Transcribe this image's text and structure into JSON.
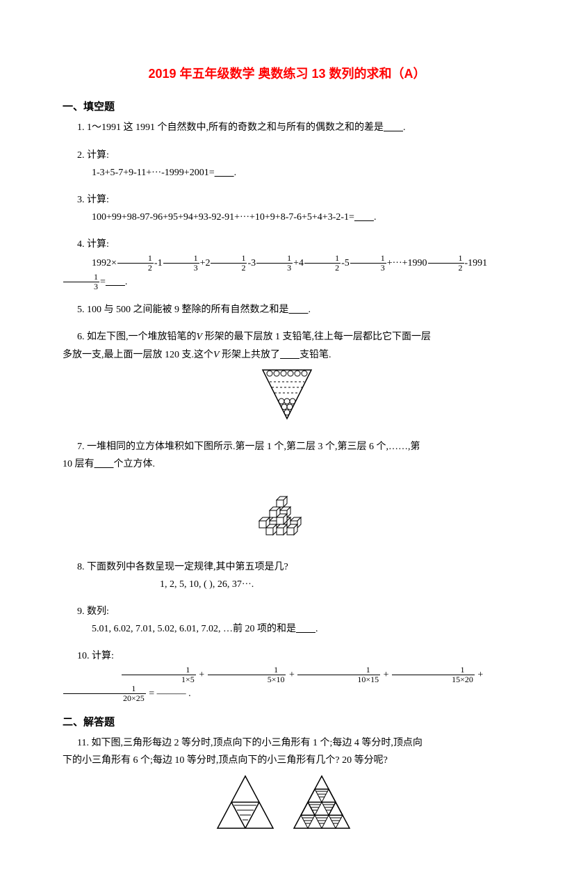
{
  "title": "2019 年五年级数学 奥数练习 13 数列的求和（A）",
  "section1_head": "一、填空题",
  "q1": {
    "num": "1.",
    "text_a": "1～1991 这 1991 个自然数中,所有的奇数之和与所有的偶数之和的差是",
    "text_b": "."
  },
  "q2": {
    "num": "2.",
    "label": "计算:",
    "expr": "1-3+5-7+9-11+···-1999+2001=",
    "suffix": "."
  },
  "q3": {
    "num": "3.",
    "label": "计算:",
    "expr": "100+99+98-97-96+95+94+93-92-91+···+10+9+8-7-6+5+4+3-2-1=",
    "suffix": "."
  },
  "q4": {
    "num": "4.",
    "label": "计算:",
    "prefix": "1992×",
    "terms": [
      {
        "coef": "",
        "num": "1",
        "den": "2",
        "after": "-1"
      },
      {
        "coef": "",
        "num": "1",
        "den": "3",
        "after": "+2"
      },
      {
        "coef": "",
        "num": "1",
        "den": "2",
        "after": "-3"
      },
      {
        "coef": "",
        "num": "1",
        "den": "3",
        "after": "+4"
      },
      {
        "coef": "",
        "num": "1",
        "den": "2",
        "after": "-5"
      },
      {
        "coef": "",
        "num": "1",
        "den": "3",
        "after": "+···+1990"
      },
      {
        "coef": "",
        "num": "1",
        "den": "2",
        "after": "-1991"
      },
      {
        "coef": "",
        "num": "1",
        "den": "3",
        "after": "="
      }
    ],
    "suffix": "."
  },
  "q5": {
    "num": "5.",
    "text_a": "100 与 500 之间能被 9 整除的所有自然数之和是",
    "text_b": "."
  },
  "q6": {
    "num": "6.",
    "line1_a": "如左下图,一个堆放铅笔的",
    "line1_b": " 形架的最下层放 1 支铅笔,往上每一层都比它下面一层",
    "line2_a": "多放一支,最上面一层放 120 支.这个",
    "line2_b": " 形架上共放了",
    "line2_c": "支铅笔."
  },
  "q7": {
    "num": "7.",
    "text_a": "一堆相同的立方体堆积如下图所示.第一层 1 个,第二层 3 个,第三层 6 个,……,第",
    "text_b": "10 层有",
    "text_c": "个立方体."
  },
  "q8": {
    "num": "8.",
    "text": "下面数列中各数呈现一定规律,其中第五项是几?",
    "seq": "1, 2, 5, 10, (  ), 26, 37···."
  },
  "q9": {
    "num": "9.",
    "label": "数列:",
    "seq_a": "5.01,  6.02,  7.01,  5.02,  6.01,  7.02,  …前 20 项的和是",
    "seq_b": "."
  },
  "q10": {
    "num": "10.",
    "label": "计算:",
    "fracs": [
      {
        "num": "1",
        "den": "1×5"
      },
      {
        "num": "1",
        "den": "5×10"
      },
      {
        "num": "1",
        "den": "10×15"
      },
      {
        "num": "1",
        "den": "15×20"
      },
      {
        "num": "1",
        "den": "20×25"
      }
    ],
    "eq": " = ——— ."
  },
  "section2_head": "二、解答题",
  "q11": {
    "num": "11.",
    "line1": "如下图,三角形每边 2 等分时,顶点向下的小三角形有 1 个;每边 4 等分时,顶点向",
    "line2": "下的小三角形有 6 个;每边 10 等分时,顶点向下的小三角形有几个? 20 等分呢?"
  },
  "blank": "        ",
  "V": "V",
  "style": {
    "title_color": "#ff0000",
    "text_color": "#000000",
    "background": "#ffffff",
    "body_fontsize": 14,
    "title_fontsize": 18
  }
}
